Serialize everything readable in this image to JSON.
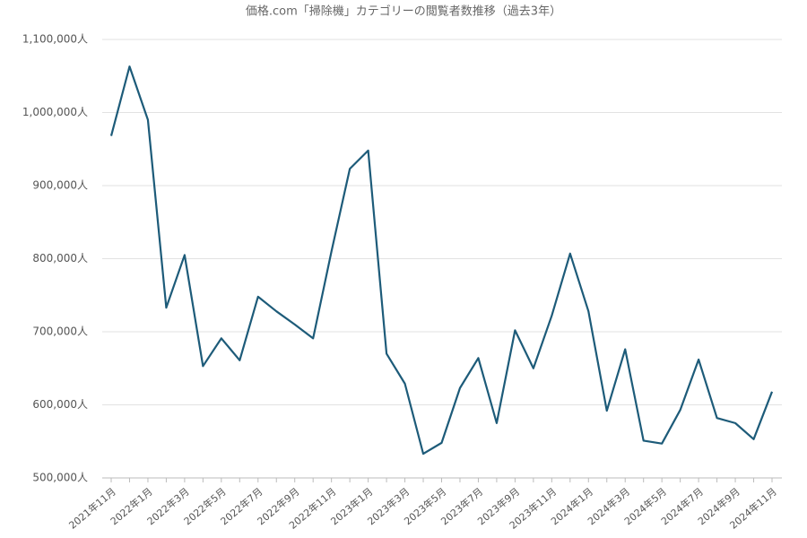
{
  "chart_data": {
    "type": "line",
    "title": "価格.com「掃除機」カテゴリーの閲覧者数推移（過去3年）",
    "categories": [
      "2021年11月",
      null,
      "2022年1月",
      null,
      "2022年3月",
      null,
      "2022年5月",
      null,
      "2022年7月",
      null,
      "2022年9月",
      null,
      "2022年11月",
      null,
      "2023年1月",
      null,
      "2023年3月",
      null,
      "2023年5月",
      null,
      "2023年7月",
      null,
      "2023年9月",
      null,
      "2023年11月",
      null,
      "2024年1月",
      null,
      "2024年3月",
      null,
      "2024年5月",
      null,
      "2024年7月",
      null,
      "2024年9月",
      null,
      "2024年11月"
    ],
    "series": [
      {
        "name": "閲覧者数",
        "color": "#1d5b79",
        "values": [
          968000,
          1063000,
          990000,
          733000,
          805000,
          653000,
          691000,
          661000,
          748000,
          728000,
          710000,
          691000,
          810000,
          923000,
          948000,
          670000,
          629000,
          533000,
          548000,
          623000,
          664000,
          575000,
          702000,
          650000,
          722000,
          807000,
          728000,
          592000,
          676000,
          551000,
          547000,
          593000,
          662000,
          582000,
          575000,
          553000,
          618000
        ]
      }
    ],
    "ylim": [
      500000,
      1100000
    ],
    "yticks": [
      {
        "value": 500000,
        "label": "500,000人"
      },
      {
        "value": 600000,
        "label": "600,000人"
      },
      {
        "value": 700000,
        "label": "700,000人"
      },
      {
        "value": 800000,
        "label": "800,000人"
      },
      {
        "value": 900000,
        "label": "900,000人"
      },
      {
        "value": 1000000,
        "label": "1,000,000人"
      },
      {
        "value": 1100000,
        "label": "1,100,000人"
      }
    ],
    "grid": true
  }
}
